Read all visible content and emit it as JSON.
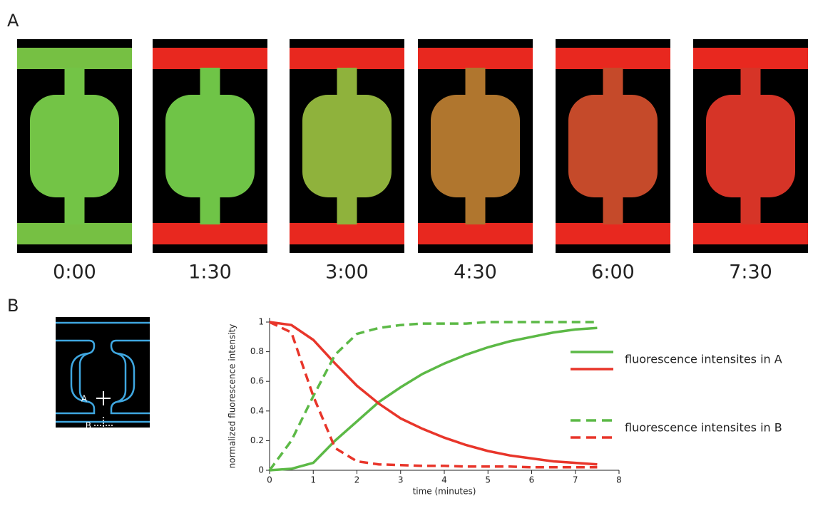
{
  "panels": {
    "a": {
      "label": "A",
      "frames": [
        {
          "time": "0:00",
          "channel": "#76c043",
          "chamber": "#73c446"
        },
        {
          "time": "1:30",
          "channel": "#e8281f",
          "chamber": "#6fc447"
        },
        {
          "time": "3:00",
          "channel": "#e8281f",
          "chamber": "#8fb23c"
        },
        {
          "time": "4:30",
          "channel": "#e8281f",
          "chamber": "#b0762e"
        },
        {
          "time": "6:00",
          "channel": "#e8281f",
          "chamber": "#c54a2a"
        },
        {
          "time": "7:30",
          "channel": "#e8281f",
          "chamber": "#d63427"
        }
      ]
    },
    "b": {
      "label": "B",
      "schematic_labels": [
        "A",
        "B"
      ]
    }
  },
  "chart_data": {
    "type": "line",
    "xlabel": "time (minutes)",
    "ylabel": "normalized fluorescence intensity",
    "x": [
      0,
      0.5,
      1,
      1.5,
      2,
      2.5,
      3,
      3.5,
      4,
      4.5,
      5,
      5.5,
      6,
      6.5,
      7,
      7.5
    ],
    "xlim": [
      0,
      8
    ],
    "xticks": [
      0,
      1,
      2,
      3,
      4,
      5,
      6,
      7,
      8
    ],
    "ylim": [
      0,
      1
    ],
    "yticks": [
      0,
      0.2,
      0.4,
      0.6,
      0.8,
      1
    ],
    "series_groups": [
      {
        "name": "fluorescence intensites in A",
        "dash": false,
        "series": [
          {
            "color": "#5cb946",
            "values": [
              0,
              0.01,
              0.05,
              0.2,
              0.33,
              0.46,
              0.56,
              0.65,
              0.72,
              0.78,
              0.83,
              0.87,
              0.9,
              0.93,
              0.95,
              0.96
            ]
          },
          {
            "color": "#e8352a",
            "values": [
              1,
              0.98,
              0.88,
              0.72,
              0.57,
              0.45,
              0.35,
              0.28,
              0.22,
              0.17,
              0.13,
              0.1,
              0.08,
              0.06,
              0.05,
              0.04
            ]
          }
        ]
      },
      {
        "name": "fluorescence intensites in B",
        "dash": true,
        "series": [
          {
            "color": "#5cb946",
            "values": [
              0,
              0.2,
              0.5,
              0.78,
              0.92,
              0.96,
              0.98,
              0.99,
              0.99,
              0.99,
              1,
              1,
              1,
              1,
              1,
              1
            ]
          },
          {
            "color": "#e8352a",
            "values": [
              1,
              0.93,
              0.5,
              0.15,
              0.06,
              0.04,
              0.035,
              0.03,
              0.03,
              0.025,
              0.025,
              0.025,
              0.02,
              0.02,
              0.02,
              0.02
            ]
          }
        ]
      }
    ]
  }
}
